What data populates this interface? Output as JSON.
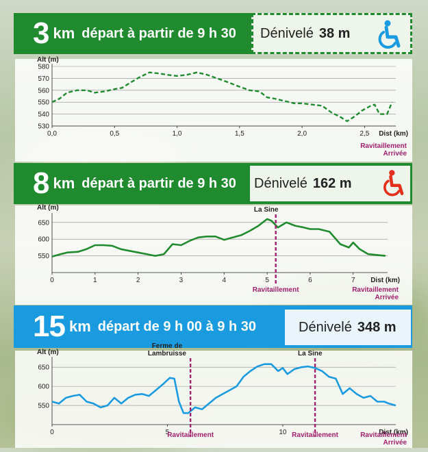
{
  "colors": {
    "green": "#1f8b2e",
    "blue": "#1a9be0",
    "purple": "#a0206e",
    "wheelchair_blue": "#1a9be0",
    "wheelchair_red": "#e2301c"
  },
  "chart_data": [
    {
      "type": "line",
      "route": {
        "distance": "3",
        "unit": "km",
        "depart": "départ à partir de 9 h 30",
        "denivele_label": "Dénivelé",
        "denivele_value": "38 m",
        "icon": "wheelchair-icon"
      },
      "ylabel": "Alt (m)",
      "xlabel": "Dist (km)",
      "ylim": [
        530,
        580
      ],
      "yticks": [
        530,
        540,
        550,
        560,
        570,
        580
      ],
      "xlim": [
        0,
        2.75
      ],
      "xticks": [
        0,
        0.5,
        1,
        1.5,
        2,
        2.5
      ],
      "xtick_labels": [
        "0,0",
        "0,5",
        "1,0",
        "1,5",
        "2,0",
        "2,5"
      ],
      "line_style": "dashed",
      "x": [
        0,
        0.06,
        0.12,
        0.2,
        0.28,
        0.34,
        0.42,
        0.5,
        0.56,
        0.62,
        0.7,
        0.78,
        0.86,
        0.92,
        1.0,
        1.08,
        1.16,
        1.24,
        1.32,
        1.4,
        1.5,
        1.58,
        1.66,
        1.72,
        1.78,
        1.86,
        1.94,
        2.0,
        2.08,
        2.16,
        2.24,
        2.3,
        2.36,
        2.42,
        2.48,
        2.55,
        2.58,
        2.62,
        2.68,
        2.72
      ],
      "values": [
        550,
        553,
        558,
        560,
        560,
        558,
        559,
        561,
        562,
        566,
        571,
        575,
        574,
        573,
        572,
        573,
        575,
        573,
        570,
        567,
        563,
        560,
        559,
        554,
        553,
        551,
        549,
        549,
        548,
        547,
        541,
        538,
        534,
        538,
        543,
        547,
        548,
        540,
        540,
        550
      ],
      "annotations": [
        {
          "x": 2.55,
          "labels": [
            "Ravitaillement",
            "Arrivée"
          ],
          "line": false
        }
      ]
    },
    {
      "type": "line",
      "route": {
        "distance": "8",
        "unit": "km",
        "depart": "départ à partir de 9 h 30",
        "denivele_label": "Dénivelé",
        "denivele_value": "162 m",
        "icon": "wheelchair-icon"
      },
      "ylabel": "Alt (m)",
      "xlabel": "Dist (km)",
      "ylim": [
        500,
        670
      ],
      "yticks": [
        550,
        600,
        650
      ],
      "xlim": [
        0,
        7.8
      ],
      "xticks": [
        0,
        1,
        2,
        3,
        4,
        5,
        6,
        7
      ],
      "xtick_labels": [
        "0",
        "1",
        "2",
        "3",
        "4",
        "5",
        "6",
        "7"
      ],
      "line_style": "solid",
      "x": [
        0,
        0.2,
        0.35,
        0.6,
        0.8,
        1.0,
        1.2,
        1.4,
        1.6,
        1.8,
        2.0,
        2.2,
        2.4,
        2.6,
        2.8,
        3.0,
        3.2,
        3.4,
        3.6,
        3.8,
        4.0,
        4.2,
        4.4,
        4.6,
        4.8,
        5.0,
        5.1,
        5.25,
        5.45,
        5.65,
        5.85,
        6.0,
        6.2,
        6.45,
        6.7,
        6.9,
        7.0,
        7.15,
        7.35,
        7.5,
        7.75
      ],
      "values": [
        548,
        555,
        560,
        562,
        570,
        582,
        582,
        580,
        570,
        565,
        560,
        555,
        550,
        555,
        585,
        582,
        595,
        605,
        608,
        608,
        598,
        605,
        612,
        625,
        640,
        660,
        655,
        635,
        650,
        640,
        635,
        630,
        630,
        622,
        585,
        575,
        590,
        570,
        555,
        553,
        550
      ],
      "annotations": [
        {
          "x": 5.2,
          "labels": [
            "Ravitaillement"
          ],
          "line": true,
          "top": "La Sine"
        },
        {
          "x": 7.2,
          "labels": [
            "Ravitaillement",
            "Arrivée"
          ],
          "line": false
        }
      ]
    },
    {
      "type": "line",
      "route": {
        "distance": "15",
        "unit": "km",
        "depart": "départ de 9 h 00 à 9 h 30",
        "denivele_label": "Dénivelé",
        "denivele_value": "348 m",
        "icon": ""
      },
      "ylabel": "Alt (m)",
      "xlabel": "Dist (km)",
      "ylim": [
        500,
        670
      ],
      "yticks": [
        550,
        600,
        650
      ],
      "xlim": [
        0,
        14.9
      ],
      "xticks": [
        0,
        5,
        10
      ],
      "xtick_labels": [
        "0",
        "5",
        "10"
      ],
      "line_style": "solid",
      "x": [
        0,
        0.3,
        0.6,
        0.9,
        1.2,
        1.5,
        1.8,
        2.1,
        2.4,
        2.7,
        3.0,
        3.3,
        3.6,
        3.9,
        4.2,
        4.5,
        4.8,
        5.1,
        5.3,
        5.5,
        5.7,
        5.9,
        6.2,
        6.5,
        6.8,
        7.1,
        7.4,
        7.7,
        8.0,
        8.3,
        8.6,
        8.9,
        9.2,
        9.5,
        9.8,
        10.0,
        10.2,
        10.5,
        10.8,
        11.1,
        11.4,
        11.7,
        12.0,
        12.3,
        12.6,
        12.9,
        13.2,
        13.5,
        13.8,
        14.1,
        14.4,
        14.6,
        14.9
      ],
      "values": [
        560,
        555,
        570,
        575,
        578,
        560,
        555,
        545,
        550,
        570,
        555,
        570,
        578,
        580,
        575,
        590,
        605,
        622,
        620,
        560,
        530,
        530,
        545,
        540,
        555,
        570,
        580,
        590,
        600,
        625,
        640,
        652,
        658,
        658,
        640,
        648,
        632,
        645,
        650,
        652,
        648,
        640,
        625,
        620,
        580,
        595,
        580,
        570,
        575,
        560,
        560,
        555,
        550
      ],
      "annotations": [
        {
          "x": 6.0,
          "labels": [
            "Ravitaillement"
          ],
          "line": true,
          "top": "Ferme de|Lambruisse",
          "top_x": 5.4
        },
        {
          "x": 11.4,
          "labels": [
            "Ravitaillement"
          ],
          "line": true,
          "top": "La Sine",
          "top_x": 11.6
        },
        {
          "x": 14.3,
          "labels": [
            "Ravitaillement",
            "Arrivée"
          ],
          "line": false
        }
      ]
    }
  ]
}
